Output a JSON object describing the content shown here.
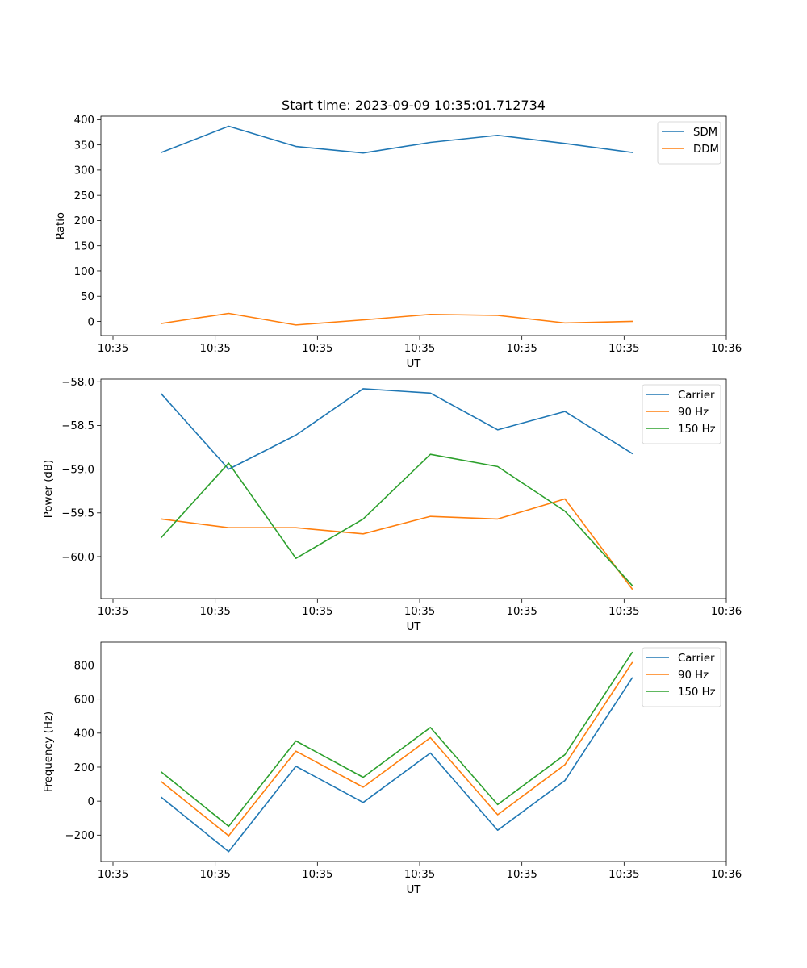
{
  "figure": {
    "title": "Start time: 2023-09-09 10:35:01.712734"
  },
  "chart_data": [
    {
      "type": "line",
      "title": "Start time: 2023-09-09 10:35:01.712734",
      "xlabel": "UT",
      "ylabel": "Ratio",
      "xlim": [
        -0.9,
        8.4
      ],
      "ylim": [
        -28,
        407
      ],
      "x_ticks": [
        -0.72,
        0.8,
        2.32,
        3.84,
        5.36,
        6.88,
        8.4
      ],
      "x_tick_labels": [
        "10:35",
        "10:35",
        "10:35",
        "10:35",
        "10:35",
        "10:35",
        "10:36"
      ],
      "y_ticks": [
        0,
        50,
        100,
        150,
        200,
        250,
        300,
        350,
        400
      ],
      "y_tick_labels": [
        "0",
        "50",
        "100",
        "150",
        "200",
        "250",
        "300",
        "350",
        "400"
      ],
      "legend_position": "top-right",
      "x": [
        0,
        1,
        2,
        3,
        4,
        5,
        6,
        7
      ],
      "series": [
        {
          "name": "SDM",
          "color": "#1f77b4",
          "values": [
            335,
            387,
            347,
            334,
            355,
            369,
            353,
            335
          ]
        },
        {
          "name": "DDM",
          "color": "#ff7f0e",
          "values": [
            -4,
            16,
            -7,
            3,
            14,
            12,
            -3,
            0
          ]
        }
      ]
    },
    {
      "type": "line",
      "title": "",
      "xlabel": "UT",
      "ylabel": "Power (dB)",
      "xlim": [
        -0.9,
        8.4
      ],
      "ylim": [
        -60.48,
        -57.97
      ],
      "x_ticks": [
        -0.72,
        0.8,
        2.32,
        3.84,
        5.36,
        6.88,
        8.4
      ],
      "x_tick_labels": [
        "10:35",
        "10:35",
        "10:35",
        "10:35",
        "10:35",
        "10:35",
        "10:36"
      ],
      "y_ticks": [
        -60.0,
        -59.5,
        -59.0,
        -58.5,
        -58.0
      ],
      "y_tick_labels": [
        "−60.0",
        "−59.5",
        "−59.0",
        "−58.5",
        "−58.0"
      ],
      "legend_position": "top-right",
      "x": [
        0,
        1,
        2,
        3,
        4,
        5,
        6,
        7
      ],
      "series": [
        {
          "name": "Carrier",
          "color": "#1f77b4",
          "values": [
            -58.14,
            -59.0,
            -58.61,
            -58.08,
            -58.13,
            -58.55,
            -58.34,
            -58.82
          ]
        },
        {
          "name": "90 Hz",
          "color": "#ff7f0e",
          "values": [
            -59.57,
            -59.67,
            -59.67,
            -59.74,
            -59.54,
            -59.57,
            -59.34,
            -60.37
          ]
        },
        {
          "name": "150 Hz",
          "color": "#2ca02c",
          "values": [
            -59.78,
            -58.93,
            -60.02,
            -59.57,
            -58.83,
            -58.97,
            -59.48,
            -60.33
          ]
        }
      ]
    },
    {
      "type": "line",
      "title": "",
      "xlabel": "UT",
      "ylabel": "Frequency (Hz)",
      "xlim": [
        -0.9,
        8.4
      ],
      "ylim": [
        -355,
        935
      ],
      "x_ticks": [
        -0.72,
        0.8,
        2.32,
        3.84,
        5.36,
        6.88,
        8.4
      ],
      "x_tick_labels": [
        "10:35",
        "10:35",
        "10:35",
        "10:35",
        "10:35",
        "10:35",
        "10:36"
      ],
      "y_ticks": [
        -200,
        0,
        200,
        400,
        600,
        800
      ],
      "y_tick_labels": [
        "−200",
        "0",
        "200",
        "400",
        "600",
        "800"
      ],
      "legend_position": "top-right",
      "x": [
        0,
        1,
        2,
        3,
        4,
        5,
        6,
        7
      ],
      "series": [
        {
          "name": "Carrier",
          "color": "#1f77b4",
          "values": [
            22,
            -297,
            205,
            -8,
            283,
            -171,
            121,
            724
          ]
        },
        {
          "name": "90 Hz",
          "color": "#ff7f0e",
          "values": [
            114,
            -204,
            294,
            82,
            373,
            -80,
            214,
            814
          ]
        },
        {
          "name": "150 Hz",
          "color": "#2ca02c",
          "values": [
            171,
            -148,
            354,
            140,
            433,
            -20,
            273,
            874
          ]
        }
      ]
    }
  ]
}
